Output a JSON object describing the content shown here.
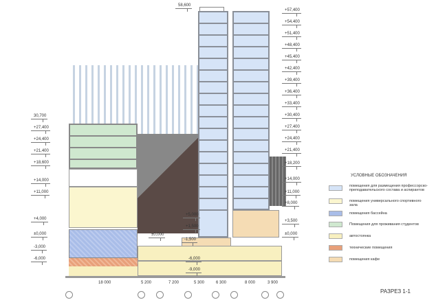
{
  "title": "РАЗРЕЗ 1-1",
  "legend": {
    "heading": "УСЛОВНЫЕ ОБОЗНАЧЕНИЯ",
    "items": [
      {
        "label": "помещения для размещения профессорско-преподавательского состава и аспирантов",
        "color": "#d6e4f7"
      },
      {
        "label": "помещения универсального спортивного зала",
        "color": "#fbf6cf"
      },
      {
        "label": "помещения бассейна",
        "color": "#a9bde8"
      },
      {
        "label": "Помещения для проживания студентов",
        "color": "#cfe8cf"
      },
      {
        "label": "автостоянка",
        "color": "#f8f0c0"
      },
      {
        "label": "технические помещения",
        "color": "#e8a07a"
      },
      {
        "label": "помещения кафе",
        "color": "#f5dcb4"
      }
    ]
  },
  "levels": {
    "top": "58,600",
    "left": [
      "30,700",
      "+27,400",
      "+24,400",
      "+21,400",
      "+18,600",
      "+14,000",
      "+11,000",
      "+4,000",
      "±0,000",
      "-3,000",
      "-6,000"
    ],
    "right": [
      "+57,400",
      "+54,400",
      "+51,400",
      "+48,400",
      "+45,400",
      "+42,400",
      "+39,400",
      "+36,400",
      "+33,400",
      "+30,400",
      "+27,400",
      "+24,400",
      "+21,400",
      "+18,200",
      "+14,000",
      "+11,000",
      "+8,000",
      "+3,500",
      "±0,000"
    ],
    "middle": [
      "+5,000",
      "+1,500",
      "±0,000",
      "-1,500",
      "-6,000",
      "-9,000"
    ]
  },
  "dimensions": [
    "18 000",
    "5 200",
    "7 200",
    "5 300",
    "6 300",
    "8 000",
    "3 900"
  ]
}
